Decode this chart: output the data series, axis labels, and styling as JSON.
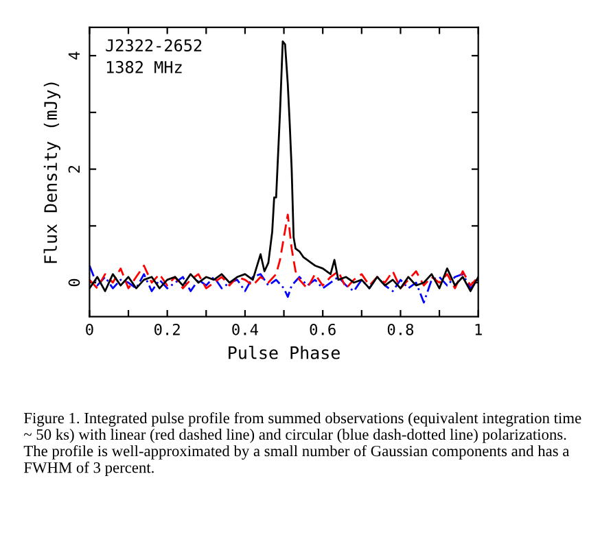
{
  "chart_data": {
    "type": "line",
    "xlabel": "Pulse Phase",
    "ylabel": "Flux Density (mJy)",
    "xlim": [
      0,
      1
    ],
    "ylim": [
      -0.6,
      4.5
    ],
    "xticks": [
      0,
      {
        "value": 0.1,
        "label": null
      },
      0.2,
      {
        "value": 0.3,
        "label": null
      },
      0.4,
      {
        "value": 0.5,
        "label": null
      },
      0.6,
      {
        "value": 0.7,
        "label": null
      },
      0.8,
      {
        "value": 0.9,
        "label": null
      },
      1
    ],
    "yticks": [
      0,
      {
        "value": 1,
        "label": null
      },
      2,
      {
        "value": 3,
        "label": null
      },
      4
    ],
    "grid": false,
    "legend": false,
    "annotations": [
      {
        "text": "J2322-2652"
      },
      {
        "text": "1382 MHz"
      },
      {
        "text": "Figure 1. Integrated pulse profile from summed observations (equivalent integration time ~ 50 ks) with linear (red dashed line) and circular (blue dash-dotted line) polarizations. The profile is well-approximated by a small number of Gaussian components and has a FWHM of 3 percent."
      }
    ],
    "series": [
      {
        "color": "#000000",
        "line_style": "solid",
        "x": [
          0,
          0.02,
          0.04,
          0.06,
          0.08,
          0.1,
          0.12,
          0.14,
          0.16,
          0.18,
          0.2,
          0.22,
          0.24,
          0.26,
          0.28,
          0.3,
          0.32,
          0.34,
          0.36,
          0.38,
          0.4,
          0.42,
          0.44,
          0.45,
          0.46,
          0.47,
          0.475,
          0.48,
          0.49,
          0.497,
          0.503,
          0.51,
          0.515,
          0.52,
          0.525,
          0.53,
          0.54,
          0.55,
          0.56,
          0.57,
          0.58,
          0.6,
          0.62,
          0.63,
          0.64,
          0.66,
          0.68,
          0.7,
          0.72,
          0.74,
          0.76,
          0.78,
          0.8,
          0.82,
          0.84,
          0.86,
          0.88,
          0.9,
          0.92,
          0.94,
          0.96,
          0.98,
          1.0
        ],
        "values": [
          -0.1,
          0.1,
          -0.15,
          0.15,
          -0.05,
          0.1,
          -0.1,
          0.05,
          0.1,
          -0.1,
          0.05,
          0.1,
          -0.05,
          0.15,
          0.0,
          0.1,
          0.05,
          0.15,
          0.0,
          0.1,
          0.15,
          0.05,
          0.5,
          0.2,
          0.35,
          0.9,
          1.5,
          1.5,
          3.0,
          4.25,
          4.2,
          3.5,
          2.8,
          2.0,
          0.8,
          0.6,
          0.55,
          0.45,
          0.4,
          0.35,
          0.3,
          0.25,
          0.15,
          0.4,
          0.05,
          0.1,
          0.0,
          0.05,
          -0.1,
          0.1,
          -0.05,
          0.05,
          -0.1,
          0.1,
          -0.05,
          0.0,
          0.15,
          -0.1,
          0.25,
          -0.05,
          0.1,
          -0.15,
          0.1
        ]
      },
      {
        "color": "#ff0000",
        "line_style": "dashed",
        "x": [
          0,
          0.02,
          0.04,
          0.06,
          0.08,
          0.1,
          0.12,
          0.14,
          0.16,
          0.18,
          0.2,
          0.22,
          0.24,
          0.26,
          0.28,
          0.3,
          0.32,
          0.34,
          0.36,
          0.38,
          0.4,
          0.42,
          0.44,
          0.46,
          0.48,
          0.49,
          0.5,
          0.51,
          0.52,
          0.53,
          0.54,
          0.56,
          0.58,
          0.6,
          0.62,
          0.64,
          0.66,
          0.68,
          0.7,
          0.72,
          0.74,
          0.76,
          0.78,
          0.8,
          0.82,
          0.84,
          0.86,
          0.88,
          0.9,
          0.92,
          0.94,
          0.96,
          0.98,
          1.0
        ],
        "values": [
          0.05,
          -0.1,
          0.15,
          0.0,
          0.25,
          -0.1,
          0.1,
          0.3,
          0.0,
          0.15,
          -0.05,
          0.1,
          -0.1,
          0.05,
          0.15,
          -0.1,
          0.0,
          0.1,
          -0.05,
          0.1,
          0.05,
          -0.05,
          0.1,
          0.0,
          0.15,
          0.4,
          0.8,
          1.2,
          0.6,
          0.2,
          0.05,
          -0.1,
          0.15,
          -0.05,
          0.1,
          0.2,
          -0.1,
          0.05,
          0.15,
          -0.05,
          0.1,
          0.0,
          0.2,
          -0.1,
          0.05,
          0.2,
          -0.05,
          0.1,
          0.0,
          0.15,
          -0.1,
          0.2,
          -0.05,
          0.1
        ]
      },
      {
        "color": "#0000ff",
        "line_style": "dashdot",
        "x": [
          0,
          0.02,
          0.04,
          0.06,
          0.08,
          0.1,
          0.12,
          0.14,
          0.16,
          0.18,
          0.2,
          0.22,
          0.24,
          0.26,
          0.28,
          0.3,
          0.32,
          0.34,
          0.36,
          0.38,
          0.4,
          0.42,
          0.44,
          0.46,
          0.48,
          0.5,
          0.51,
          0.52,
          0.54,
          0.56,
          0.58,
          0.6,
          0.62,
          0.64,
          0.66,
          0.68,
          0.7,
          0.72,
          0.74,
          0.76,
          0.78,
          0.8,
          0.82,
          0.84,
          0.86,
          0.88,
          0.9,
          0.92,
          0.94,
          0.96,
          0.98,
          1.0
        ],
        "values": [
          0.3,
          -0.05,
          0.1,
          -0.1,
          0.05,
          0.0,
          -0.1,
          0.15,
          -0.15,
          0.05,
          -0.1,
          0.0,
          0.1,
          -0.15,
          0.05,
          -0.05,
          0.1,
          -0.1,
          0.0,
          0.05,
          -0.15,
          0.1,
          0.15,
          -0.05,
          0.05,
          -0.1,
          -0.25,
          -0.05,
          0.1,
          -0.05,
          0.05,
          -0.1,
          0.0,
          0.1,
          -0.05,
          -0.15,
          0.05,
          -0.1,
          0.1,
          -0.05,
          -0.15,
          0.05,
          -0.1,
          0.0,
          -0.35,
          0.05,
          0.1,
          -0.05,
          0.1,
          0.15,
          -0.1,
          0.05
        ]
      }
    ]
  }
}
